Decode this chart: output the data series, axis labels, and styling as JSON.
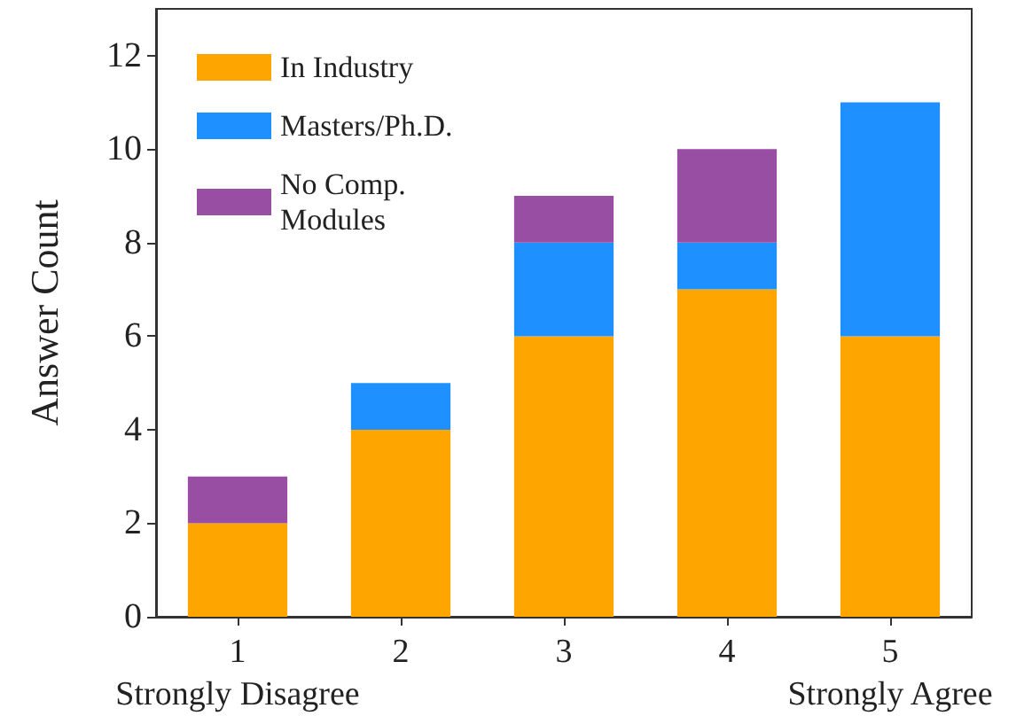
{
  "chart_data": {
    "type": "bar",
    "stacked": true,
    "ylabel": "Answer Count",
    "categories": [
      "1\nStrongly Disagree",
      "2",
      "3",
      "4",
      "5\nStrongly Agree"
    ],
    "series": [
      {
        "name": "In Industry",
        "color": "#ffa500",
        "values": [
          2,
          4,
          6,
          7,
          6
        ]
      },
      {
        "name": "Masters/Ph.D.",
        "color": "#1e90ff",
        "values": [
          0,
          1,
          2,
          1,
          5
        ]
      },
      {
        "name": "No Comp. Modules",
        "color": "#984ea3",
        "values": [
          1,
          0,
          1,
          2,
          0
        ]
      }
    ],
    "ylim": [
      0,
      13
    ],
    "yticks": [
      0,
      2,
      4,
      6,
      8,
      10,
      12
    ],
    "legend": "top left"
  }
}
